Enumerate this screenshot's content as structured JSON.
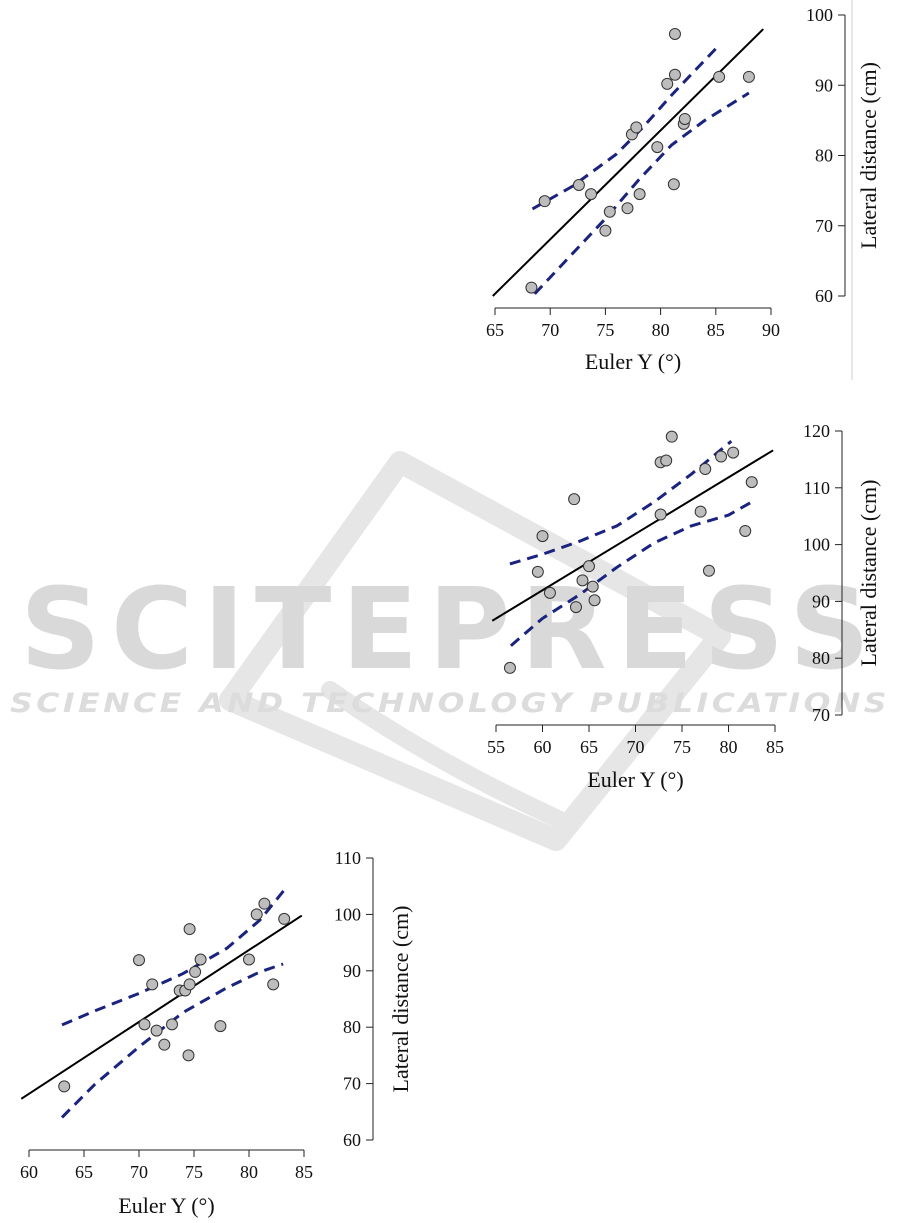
{
  "watermark": {
    "brand": "SCITEPRESS",
    "tagline": "SCIENCE AND TECHNOLOGY PUBLICATIONS"
  },
  "chart_data": [
    {
      "type": "scatter",
      "title": "",
      "xlabel": "Euler Y (°)",
      "ylabel": "Lateral distance (cm)",
      "xlim": [
        65,
        90
      ],
      "ylim": [
        60,
        100
      ],
      "x_ticks": [
        "65",
        "70",
        "75",
        "80",
        "85",
        "90"
      ],
      "y_ticks": [
        "60",
        "70",
        "80",
        "90",
        "100"
      ],
      "points": [
        [
          68.3,
          61.2
        ],
        [
          69.5,
          73.5
        ],
        [
          72.6,
          75.8
        ],
        [
          73.7,
          74.5
        ],
        [
          75.0,
          69.3
        ],
        [
          75.4,
          72.0
        ],
        [
          77.0,
          72.5
        ],
        [
          77.4,
          83.0
        ],
        [
          77.8,
          84.0
        ],
        [
          78.1,
          74.5
        ],
        [
          79.7,
          81.2
        ],
        [
          80.6,
          90.2
        ],
        [
          81.2,
          75.9
        ],
        [
          81.3,
          91.5
        ],
        [
          81.3,
          97.3
        ],
        [
          82.1,
          84.5
        ],
        [
          82.2,
          85.2
        ],
        [
          85.3,
          91.2
        ],
        [
          88.0,
          91.2
        ]
      ],
      "fit_line": [
        [
          64.8,
          60.0
        ],
        [
          89.3,
          98.0
        ]
      ],
      "ci_upper": [
        [
          68.4,
          72.4
        ],
        [
          72,
          75.6
        ],
        [
          76,
          80.2
        ],
        [
          78.4,
          84.0
        ],
        [
          81,
          88.6
        ],
        [
          85.3,
          95.7
        ]
      ],
      "ci_lower": [
        [
          68.6,
          60.3
        ],
        [
          72,
          66.0
        ],
        [
          75,
          71.0
        ],
        [
          78,
          76.5
        ],
        [
          81,
          81.5
        ],
        [
          84,
          85.0
        ],
        [
          88,
          88.9
        ]
      ],
      "fit_color": "#000000",
      "ci_color": "#1a237e",
      "point_color": "#bdbdbd"
    },
    {
      "type": "scatter",
      "title": "",
      "xlabel": "Euler Y (°)",
      "ylabel": "Lateral distance (cm)",
      "xlim": [
        55,
        85
      ],
      "ylim": [
        70,
        120
      ],
      "x_ticks": [
        "55",
        "60",
        "65",
        "70",
        "75",
        "80",
        "85"
      ],
      "y_ticks": [
        "70",
        "80",
        "90",
        "100",
        "110",
        "120"
      ],
      "points": [
        [
          56.5,
          78.3
        ],
        [
          59.5,
          95.2
        ],
        [
          60.0,
          101.5
        ],
        [
          60.8,
          91.5
        ],
        [
          63.4,
          108.0
        ],
        [
          63.6,
          89.0
        ],
        [
          64.3,
          93.7
        ],
        [
          65.0,
          96.2
        ],
        [
          65.4,
          92.6
        ],
        [
          65.6,
          90.2
        ],
        [
          72.7,
          114.5
        ],
        [
          72.7,
          105.3
        ],
        [
          73.3,
          114.8
        ],
        [
          73.9,
          119.0
        ],
        [
          77.0,
          105.8
        ],
        [
          77.5,
          113.3
        ],
        [
          77.9,
          95.4
        ],
        [
          79.2,
          115.5
        ],
        [
          80.5,
          116.2
        ],
        [
          81.8,
          102.4
        ],
        [
          82.5,
          111.0
        ]
      ],
      "fit_line": [
        [
          54.6,
          86.6
        ],
        [
          84.8,
          116.6
        ]
      ],
      "ci_upper": [
        [
          56.5,
          96.6
        ],
        [
          60,
          98.3
        ],
        [
          64,
          100.6
        ],
        [
          68,
          103.3
        ],
        [
          72,
          107.5
        ],
        [
          76,
          112.4
        ],
        [
          80.3,
          118.2
        ]
      ],
      "ci_lower": [
        [
          56.6,
          82.2
        ],
        [
          60,
          87.0
        ],
        [
          64,
          91.2
        ],
        [
          68,
          96.0
        ],
        [
          72,
          100.3
        ],
        [
          76,
          103.3
        ],
        [
          80,
          105.2
        ],
        [
          82.7,
          107.7
        ]
      ],
      "fit_color": "#000000",
      "ci_color": "#1a237e",
      "point_color": "#bdbdbd"
    },
    {
      "type": "scatter",
      "title": "",
      "xlabel": "Euler Y (°)",
      "ylabel": "Lateral distance (cm)",
      "xlim": [
        60,
        85
      ],
      "ylim": [
        60,
        110
      ],
      "x_ticks": [
        "60",
        "65",
        "70",
        "75",
        "80",
        "85"
      ],
      "y_ticks": [
        "60",
        "70",
        "80",
        "90",
        "100",
        "110"
      ],
      "points": [
        [
          63.2,
          69.5
        ],
        [
          70.0,
          91.9
        ],
        [
          70.5,
          80.5
        ],
        [
          71.2,
          87.6
        ],
        [
          71.6,
          79.4
        ],
        [
          72.3,
          76.9
        ],
        [
          73.0,
          80.5
        ],
        [
          73.7,
          86.5
        ],
        [
          74.2,
          86.5
        ],
        [
          74.5,
          75.0
        ],
        [
          74.6,
          97.4
        ],
        [
          74.6,
          87.6
        ],
        [
          75.1,
          89.8
        ],
        [
          75.6,
          92.0
        ],
        [
          77.4,
          80.2
        ],
        [
          80.0,
          92.0
        ],
        [
          80.7,
          100.0
        ],
        [
          81.4,
          101.9
        ],
        [
          82.2,
          87.6
        ],
        [
          83.2,
          99.2
        ]
      ],
      "fit_line": [
        [
          59.3,
          67.3
        ],
        [
          84.8,
          99.8
        ]
      ],
      "ci_upper": [
        [
          63,
          80.4
        ],
        [
          66,
          82.9
        ],
        [
          70,
          86.0
        ],
        [
          74,
          89.5
        ],
        [
          78,
          94.0
        ],
        [
          81,
          99.0
        ],
        [
          83.2,
          104.3
        ]
      ],
      "ci_lower": [
        [
          63,
          64.0
        ],
        [
          66,
          69.9
        ],
        [
          70,
          76.5
        ],
        [
          74,
          82.6
        ],
        [
          78,
          87.0
        ],
        [
          81,
          89.8
        ],
        [
          83.1,
          91.2
        ]
      ],
      "fit_color": "#000000",
      "ci_color": "#1a237e",
      "point_color": "#bdbdbd"
    }
  ]
}
